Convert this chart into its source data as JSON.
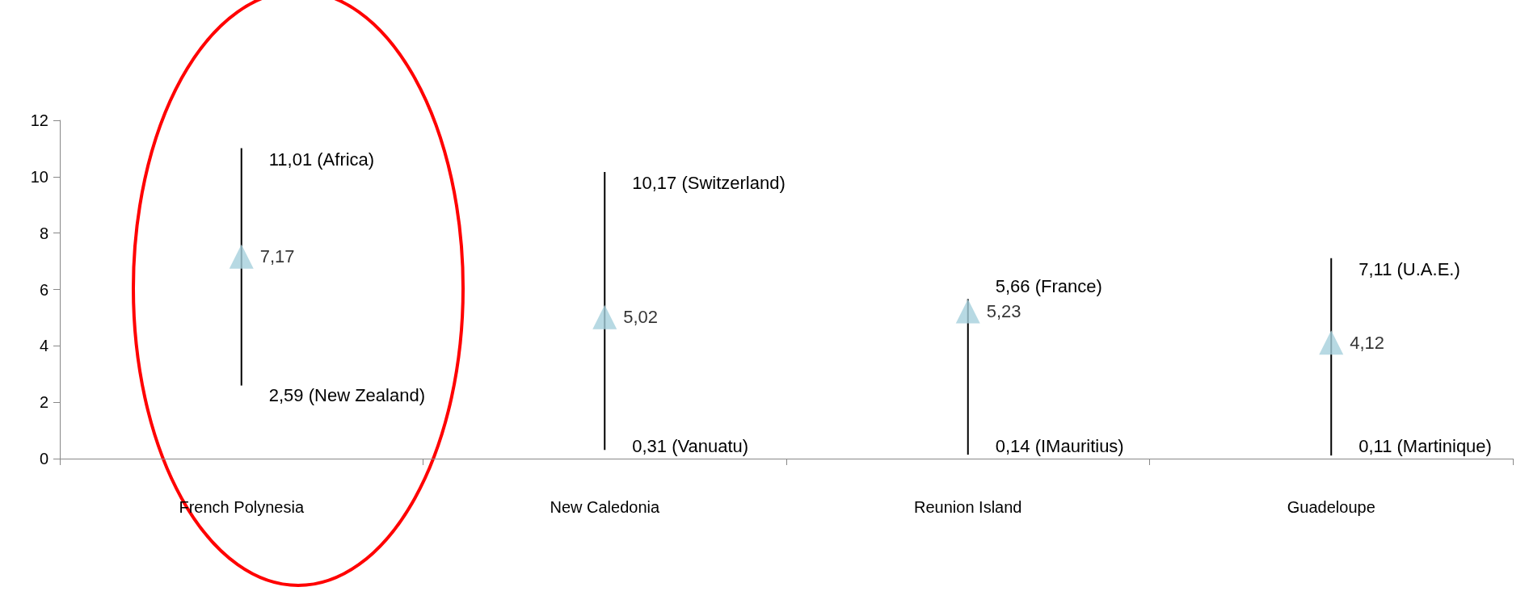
{
  "chart_data": {
    "type": "scatter",
    "categories": [
      "French Polynesia",
      "New Caledonia",
      "Reunion Island",
      "Guadeloupe"
    ],
    "values": [
      7.17,
      5.02,
      5.23,
      4.12
    ],
    "errors": [
      [
        2.59,
        11.01
      ],
      [
        0.31,
        10.17
      ],
      [
        0.14,
        5.66
      ],
      [
        0.11,
        7.11
      ]
    ],
    "value_labels": [
      "7,17",
      "5,02",
      "5,23",
      "4,12"
    ],
    "color": "#a5cfdc",
    "marker": "triangle",
    "ylim": [
      0,
      12
    ],
    "yticks": [
      0,
      2,
      4,
      6,
      8,
      10,
      12
    ],
    "grid": false,
    "annotations": [
      "11,01 (Africa)",
      "2,59 (New Zealand)",
      "10,17 (Switzerland)",
      "0,31 (Vanuatu)",
      "5,66 (France)",
      "0,14 (IMauritius)",
      "7,11 (U.A.E.)",
      "0,11 (Martinique)"
    ]
  }
}
